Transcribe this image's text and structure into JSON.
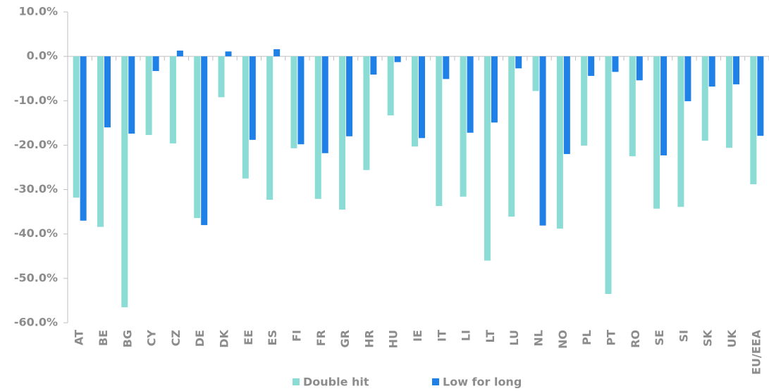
{
  "chart_data": {
    "type": "bar",
    "categories": [
      "AT",
      "BE",
      "BG",
      "CY",
      "CZ",
      "DE",
      "DK",
      "EE",
      "ES",
      "FI",
      "FR",
      "GR",
      "HR",
      "HU",
      "IE",
      "IT",
      "LI",
      "LT",
      "LU",
      "NL",
      "NO",
      "PL",
      "PT",
      "RO",
      "SE",
      "SI",
      "SK",
      "UK",
      "EU/EEA"
    ],
    "series": [
      {
        "name": "Double hit",
        "color": "#8adcd4",
        "values": [
          -31.8,
          -38.4,
          -56.5,
          -17.7,
          -19.6,
          -36.4,
          -9.2,
          -27.5,
          -32.3,
          -20.7,
          -32.1,
          -34.5,
          -25.6,
          -13.3,
          -20.3,
          -33.7,
          -31.6,
          -46.0,
          -36.1,
          -7.8,
          -38.8,
          -20.1,
          -53.5,
          -22.5,
          -34.3,
          -33.9,
          -19.0,
          -20.6,
          -28.8
        ]
      },
      {
        "name": "Low for long",
        "color": "#1f80e8",
        "values": [
          -37.0,
          -16.0,
          -17.4,
          -3.3,
          1.3,
          -38.0,
          1.1,
          -18.8,
          1.6,
          -19.8,
          -21.8,
          -18.0,
          -4.1,
          -1.3,
          -18.4,
          -5.1,
          -17.2,
          -14.9,
          -2.7,
          -38.1,
          -22.0,
          -4.4,
          -3.5,
          -5.4,
          -22.3,
          -10.1,
          -6.8,
          -6.3,
          -17.9
        ]
      }
    ],
    "ylim": [
      -60,
      10
    ],
    "yticks": [
      {
        "value": 10,
        "label": "10.0%"
      },
      {
        "value": 0,
        "label": "0.0%"
      },
      {
        "value": -10,
        "label": "-10.0%"
      },
      {
        "value": -20,
        "label": "-20.0%"
      },
      {
        "value": -30,
        "label": "-30.0%"
      },
      {
        "value": -40,
        "label": "-40.0%"
      },
      {
        "value": -50,
        "label": "-50.0%"
      },
      {
        "value": -60,
        "label": "-60.0%"
      }
    ],
    "legend": "bottom"
  }
}
